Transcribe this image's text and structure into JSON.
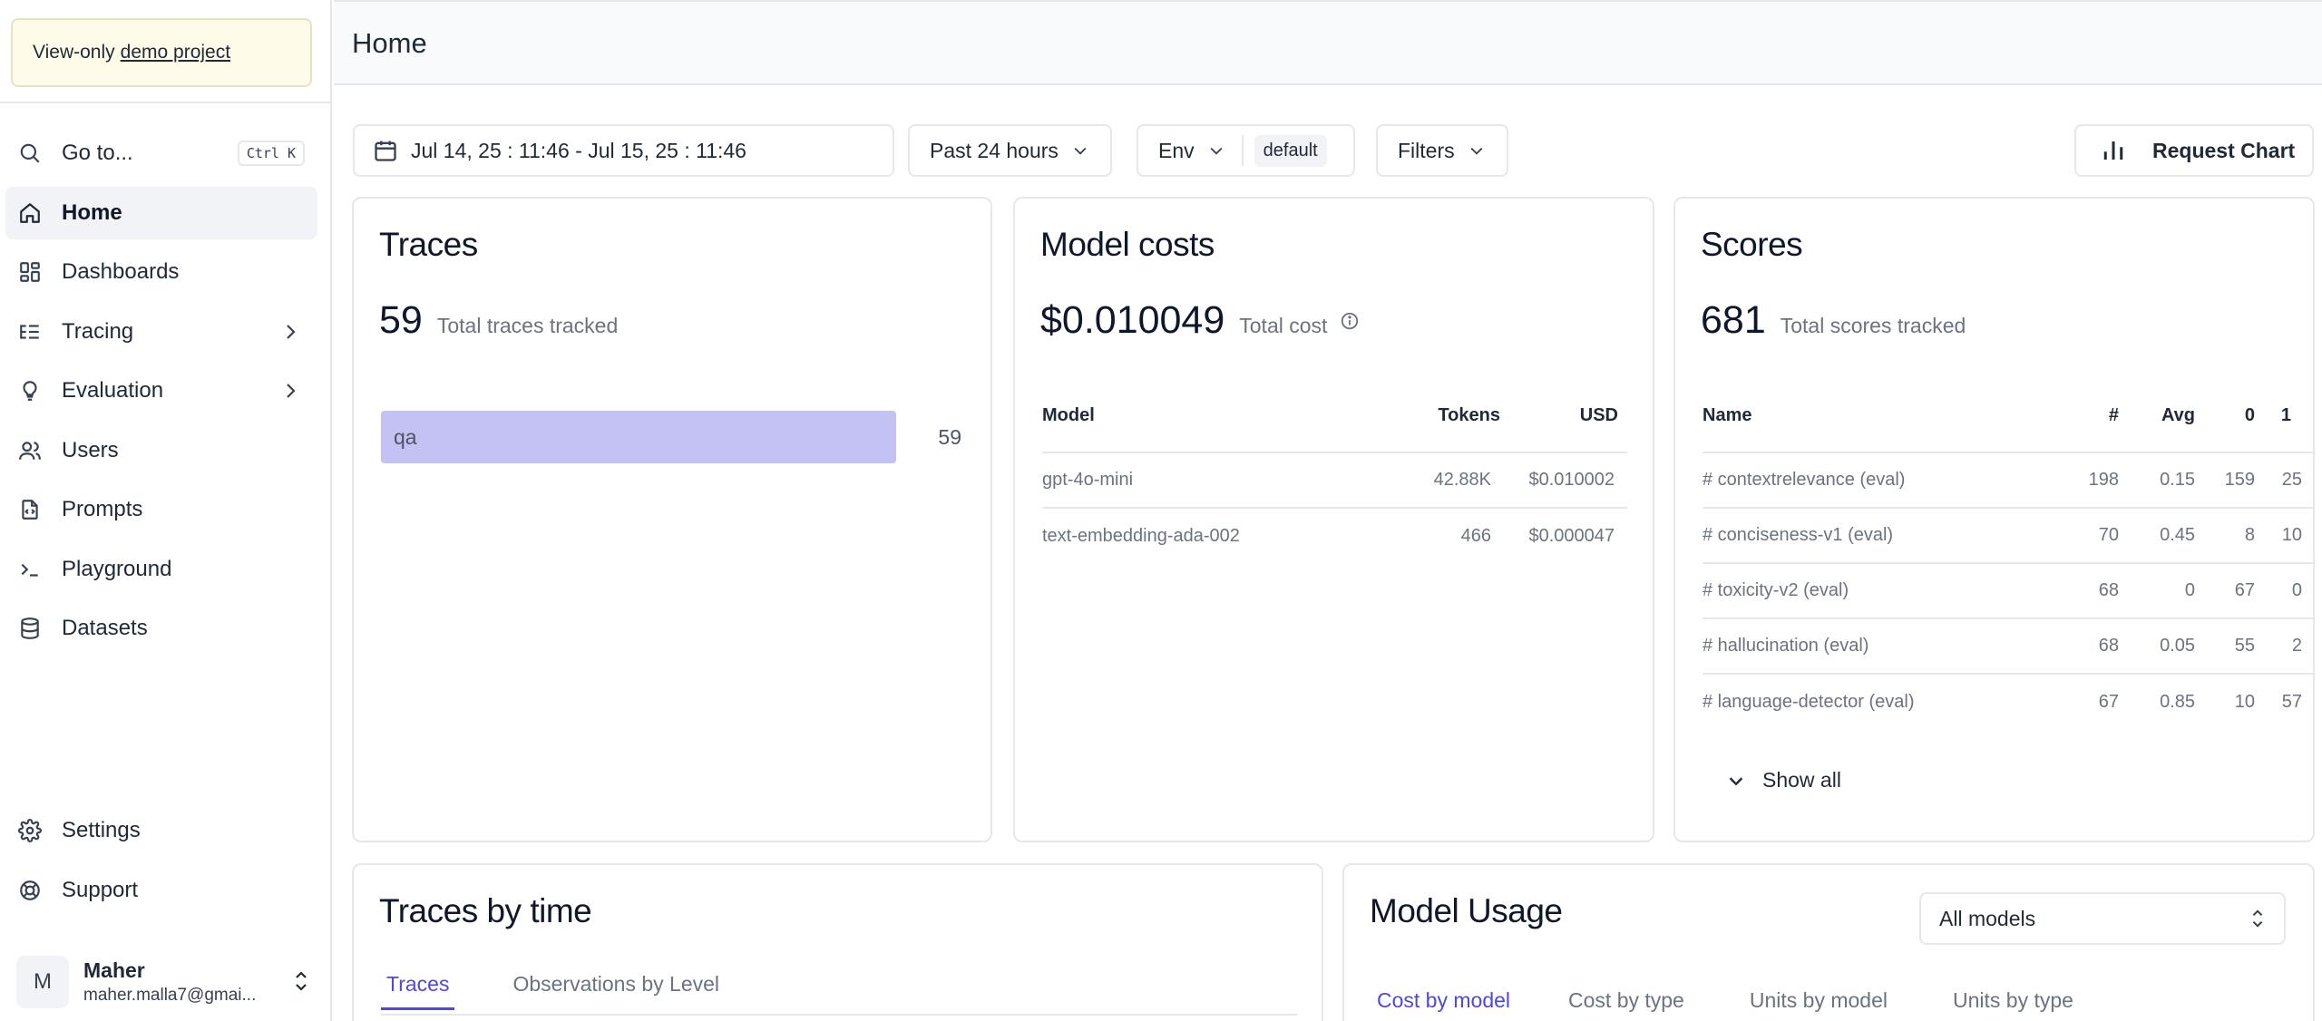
{
  "banner": {
    "prefix": "View-only",
    "link": "demo project"
  },
  "nav": {
    "goto": {
      "label": "Go to...",
      "shortcut": "Ctrl K"
    },
    "items": [
      {
        "label": "Home",
        "icon": "home-icon",
        "active": true
      },
      {
        "label": "Dashboards",
        "icon": "dashboard-icon"
      },
      {
        "label": "Tracing",
        "icon": "tracing-icon",
        "expandable": true
      },
      {
        "label": "Evaluation",
        "icon": "lightbulb-icon",
        "expandable": true
      },
      {
        "label": "Users",
        "icon": "users-icon"
      },
      {
        "label": "Prompts",
        "icon": "file-code-icon"
      },
      {
        "label": "Playground",
        "icon": "terminal-icon"
      },
      {
        "label": "Datasets",
        "icon": "database-icon"
      }
    ],
    "bottom": [
      {
        "label": "Settings",
        "icon": "gear-icon"
      },
      {
        "label": "Support",
        "icon": "lifebuoy-icon"
      }
    ]
  },
  "user": {
    "initial": "M",
    "name": "Maher",
    "email": "maher.malla7@gmai..."
  },
  "header": {
    "title": "Home"
  },
  "filters": {
    "date_range": "Jul 14, 25 : 11:46 - Jul 15, 25 : 11:46",
    "preset": "Past 24 hours",
    "env_label": "Env",
    "env_value": "default",
    "filters_label": "Filters",
    "request_chart": "Request Chart"
  },
  "traces": {
    "title": "Traces",
    "total": "59",
    "total_label": "Total traces tracked",
    "bars": [
      {
        "name": "qa",
        "value": 59,
        "fraction": 1.0
      }
    ]
  },
  "costs": {
    "title": "Model costs",
    "total": "$0.010049",
    "total_label": "Total cost",
    "headers": {
      "model": "Model",
      "tokens": "Tokens",
      "usd": "USD"
    },
    "rows": [
      {
        "model": "gpt-4o-mini",
        "tokens": "42.88K",
        "usd": "$0.010002"
      },
      {
        "model": "text-embedding-ada-002",
        "tokens": "466",
        "usd": "$0.000047"
      }
    ]
  },
  "scores": {
    "title": "Scores",
    "total": "681",
    "total_label": "Total scores tracked",
    "headers": {
      "name": "Name",
      "count": "#",
      "avg": "Avg",
      "zero": "0",
      "one": "1"
    },
    "rows": [
      {
        "name": "# contextrelevance (eval)",
        "count": "198",
        "avg": "0.15",
        "zero": "159",
        "one": "25"
      },
      {
        "name": "# conciseness-v1 (eval)",
        "count": "70",
        "avg": "0.45",
        "zero": "8",
        "one": "10"
      },
      {
        "name": "# toxicity-v2 (eval)",
        "count": "68",
        "avg": "0",
        "zero": "67",
        "one": "0"
      },
      {
        "name": "# hallucination (eval)",
        "count": "68",
        "avg": "0.05",
        "zero": "55",
        "one": "2"
      },
      {
        "name": "# language-detector (eval)",
        "count": "67",
        "avg": "0.85",
        "zero": "10",
        "one": "57"
      }
    ],
    "show_all": "Show all"
  },
  "traces_by_time": {
    "title": "Traces by time",
    "tabs": [
      "Traces",
      "Observations by Level"
    ]
  },
  "model_usage": {
    "title": "Model Usage",
    "select": "All models",
    "tabs": [
      "Cost by model",
      "Cost by type",
      "Units by model",
      "Units by type"
    ]
  }
}
